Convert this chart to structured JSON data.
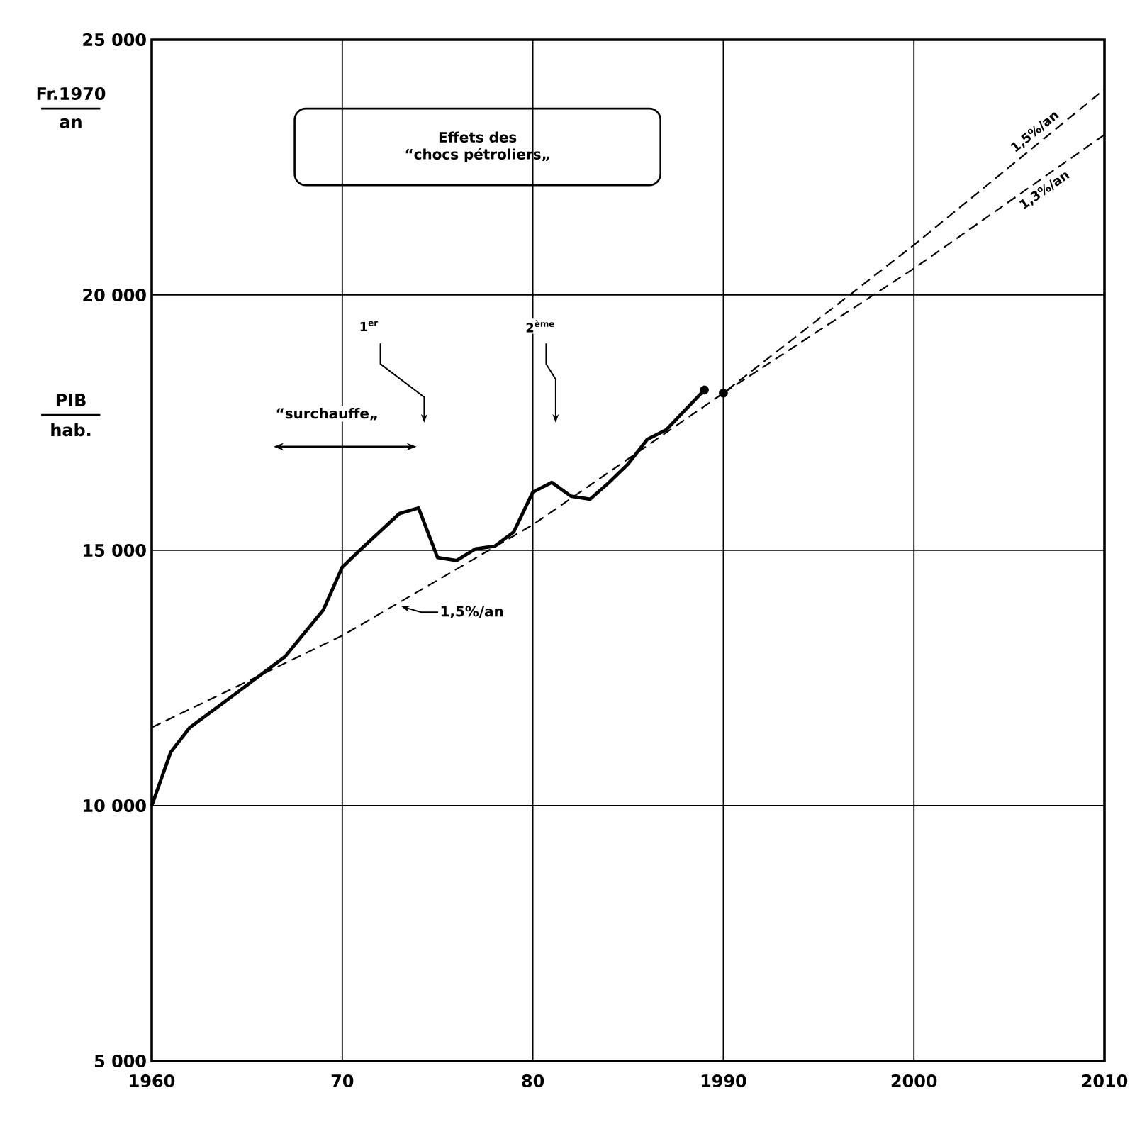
{
  "chart_data": {
    "type": "line",
    "xlim": [
      1960,
      2010
    ],
    "ylim": [
      5000,
      25000
    ],
    "xticks": [
      {
        "value": 1960,
        "label": "1960"
      },
      {
        "value": 1970,
        "label": "70"
      },
      {
        "value": 1980,
        "label": "80"
      },
      {
        "value": 1990,
        "label": "1990"
      },
      {
        "value": 2000,
        "label": "2000"
      },
      {
        "value": 2010,
        "label": "2010"
      }
    ],
    "yticks": [
      {
        "value": 5000,
        "label": "5 000"
      },
      {
        "value": 10000,
        "label": "10 000"
      },
      {
        "value": 15000,
        "label": "15 000"
      },
      {
        "value": 20000,
        "label": "20 000"
      },
      {
        "value": 25000,
        "label": "25 000"
      }
    ],
    "grid": true,
    "annotations": [
      "Fr.1970",
      "an",
      "PIB",
      "hab.",
      "Effets des",
      "“chocs pétroliers„",
      "1$^{er}$",
      "2$^{ème}$",
      "“surchauffe„",
      {
        "text": "1,5%/an",
        "x": 1973.1,
        "y": 13900
      }
    ],
    "series": [
      {
        "color": "#000000",
        "line_style": "solid",
        "x": [
          1960,
          1961,
          1962,
          1964.5,
          1967,
          1969,
          1970,
          1971,
          1973,
          1974,
          1975,
          1976,
          1977,
          1978,
          1979,
          1980,
          1981,
          1982,
          1983,
          1984,
          1985,
          1986,
          1987,
          1989
        ],
        "values": [
          10000,
          11050,
          11530,
          12220,
          12920,
          13830,
          14670,
          15030,
          15720,
          15830,
          14860,
          14800,
          15030,
          15080,
          15360,
          16140,
          16330,
          16060,
          16000,
          16330,
          16690,
          17170,
          17360,
          18140
        ]
      },
      {
        "type": "line",
        "name": "1,5%/an",
        "color": "#000000",
        "line_style": "dashed",
        "x": [
          1960,
          1970,
          1980,
          1990,
          2000,
          2010
        ],
        "values": [
          11530,
          13330,
          15500,
          18080,
          20980,
          24030
        ]
      },
      {
        "type": "line",
        "name": "1,3%/an",
        "color": "#000000",
        "line_style": "dashed",
        "x": [
          1990,
          2000,
          2010
        ],
        "values": [
          18080,
          20520,
          23140
        ]
      },
      {
        "type": "scatter",
        "color": "#000000",
        "x": [
          1989,
          1990
        ],
        "values": [
          18140,
          18080
        ]
      }
    ]
  }
}
